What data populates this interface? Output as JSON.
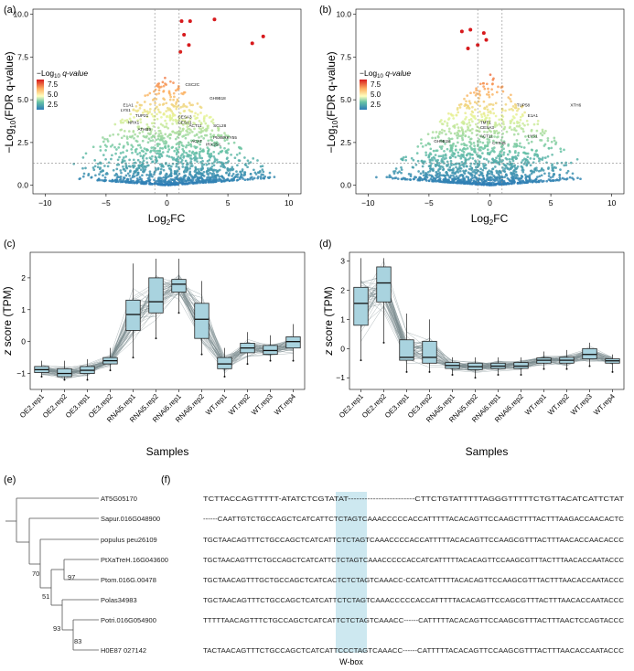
{
  "panels": {
    "a": "(a)",
    "b": "(b)",
    "c": "(c)",
    "d": "(d)",
    "e": "(e)",
    "f": "(f)"
  },
  "volcano_common": {
    "xlabel_main": "Log",
    "xlabel_sub": "2",
    "xlabel_tail": "FC",
    "ylabel": "−Log",
    "ylabel_sub": "10",
    "ylabel_tail": "(FDR q-value)",
    "legend_title": "−Log",
    "legend_title_sub": "10",
    "legend_title_tail": " q-value",
    "legend_ticks": [
      "7.5",
      "5.0",
      "2.5"
    ],
    "legend_colors": [
      "#d7191c",
      "#fdae61",
      "#ffffbf",
      "#abd9e9",
      "#2c7bb6"
    ]
  },
  "box_common": {
    "ylabel_z": "z",
    "ylabel_rest": " score (TPM)",
    "xlabel": "Samples",
    "samples": [
      "OE2.rep1",
      "OE2.rep2",
      "OE3.rep1",
      "OE3.rep2",
      "RNAi5.rep1",
      "RNAi5.rep2",
      "RNAi6.rep1",
      "RNAi6.rep2",
      "WT.rep1",
      "WT.rep2",
      "WT.rep3",
      "WT.rep4"
    ]
  },
  "chart_data": [
    {
      "type": "scatter",
      "title": "",
      "xlabel": "Log2FC",
      "ylabel": "−Log10(FDR q-value)",
      "xlim": [
        -11,
        11
      ],
      "ylim": [
        -0.5,
        10.3
      ],
      "xticks": [
        "−10",
        "−5",
        "0",
        "5",
        "10"
      ],
      "yticks": [
        "0.0",
        "2.5",
        "5.0",
        "7.5",
        "10.0"
      ],
      "thresholds": {
        "x": [
          -1,
          1
        ],
        "y": 1.3
      },
      "color_scale": "−Log10 q-value",
      "highlighted_points": [
        {
          "x": 1.2,
          "y": 9.6
        },
        {
          "x": 1.9,
          "y": 9.6
        },
        {
          "x": 3.9,
          "y": 9.7
        },
        {
          "x": 7.0,
          "y": 8.3
        },
        {
          "x": 7.9,
          "y": 8.7
        },
        {
          "x": 1.4,
          "y": 8.8
        },
        {
          "x": 1.8,
          "y": 8.2
        },
        {
          "x": 1.1,
          "y": 7.8
        }
      ],
      "labels": [
        {
          "text": "CSC2C",
          "x": 1.5,
          "y": 5.8
        },
        {
          "text": "GH9B18",
          "x": 3.5,
          "y": 5.0
        },
        {
          "text": "E1A1",
          "x": -3.6,
          "y": 4.6
        },
        {
          "text": "LYS1",
          "x": -3.8,
          "y": 4.3
        },
        {
          "text": "TUP21",
          "x": -2.6,
          "y": 4.0
        },
        {
          "text": "NRX1",
          "x": -3.2,
          "y": 3.6
        },
        {
          "text": "CESA3",
          "x": 0.9,
          "y": 3.9
        },
        {
          "text": "CESA1",
          "x": 0.9,
          "y": 3.6
        },
        {
          "text": "ACT11",
          "x": 1.8,
          "y": 3.4
        },
        {
          "text": "SCL28",
          "x": 3.8,
          "y": 3.4
        },
        {
          "text": "ATHB9",
          "x": -2.4,
          "y": 3.2
        },
        {
          "text": "PtoWRKY55",
          "x": 3.8,
          "y": 2.7
        },
        {
          "text": "ACAT",
          "x": 2.0,
          "y": 2.5
        },
        {
          "text": "IRX15-L",
          "x": 3.2,
          "y": 2.3
        }
      ]
    },
    {
      "type": "scatter",
      "title": "",
      "xlabel": "Log2FC",
      "ylabel": "−Log10(FDR q-value)",
      "xlim": [
        -11,
        11
      ],
      "ylim": [
        -0.5,
        10.3
      ],
      "xticks": [
        "−10",
        "−5",
        "0",
        "5",
        "10"
      ],
      "yticks": [
        "0.0",
        "2.5",
        "5.0",
        "7.5",
        "10.0"
      ],
      "thresholds": {
        "x": [
          -1,
          1
        ],
        "y": 1.3
      },
      "color_scale": "−Log10 q-value",
      "highlighted_points": [
        {
          "x": -1.6,
          "y": 9.1
        },
        {
          "x": -2.3,
          "y": 9.0
        },
        {
          "x": -0.5,
          "y": 8.9
        },
        {
          "x": -0.3,
          "y": 8.5
        },
        {
          "x": -1.0,
          "y": 8.2
        },
        {
          "x": -1.8,
          "y": 8.0
        }
      ],
      "labels": [
        {
          "text": "TUP58",
          "x": 2.2,
          "y": 4.6
        },
        {
          "text": "XTH6",
          "x": 6.6,
          "y": 4.6
        },
        {
          "text": "E1A1",
          "x": 3.1,
          "y": 4.0
        },
        {
          "text": "TMT1",
          "x": -0.8,
          "y": 3.6
        },
        {
          "text": "CESA3",
          "x": -0.8,
          "y": 3.3
        },
        {
          "text": "ACT11",
          "x": -0.8,
          "y": 2.8
        },
        {
          "text": "GH9B18",
          "x": -4.6,
          "y": 2.5
        },
        {
          "text": "CYP45",
          "x": 0.2,
          "y": 2.4
        },
        {
          "text": "LYS1",
          "x": 3.1,
          "y": 2.8
        }
      ]
    },
    {
      "type": "box",
      "title": "",
      "xlabel": "Samples",
      "ylabel": "z score (TPM)",
      "ylim": [
        -1.5,
        2.8
      ],
      "yticks": [
        "−1",
        "0",
        "1",
        "2"
      ],
      "categories": [
        "OE2.rep1",
        "OE2.rep2",
        "OE3.rep1",
        "OE3.rep2",
        "RNAi5.rep1",
        "RNAi5.rep2",
        "RNAi6.rep1",
        "RNAi6.rep2",
        "WT.rep1",
        "WT.rep2",
        "WT.rep3",
        "WT.rep4"
      ],
      "boxes": [
        {
          "min": -1.1,
          "q1": -0.97,
          "median": -0.88,
          "q3": -0.78,
          "max": -0.6
        },
        {
          "min": -1.2,
          "q1": -1.1,
          "median": -1.0,
          "q3": -0.85,
          "max": -0.6
        },
        {
          "min": -1.2,
          "q1": -1.0,
          "median": -0.9,
          "q3": -0.78,
          "max": -0.55
        },
        {
          "min": -0.9,
          "q1": -0.7,
          "median": -0.6,
          "q3": -0.5,
          "max": -0.2
        },
        {
          "min": -0.5,
          "q1": 0.35,
          "median": 0.85,
          "q3": 1.3,
          "max": 2.45
        },
        {
          "min": 0.1,
          "q1": 0.9,
          "median": 1.25,
          "q3": 2.0,
          "max": 2.6
        },
        {
          "min": 0.9,
          "q1": 1.55,
          "median": 1.8,
          "q3": 1.95,
          "max": 2.6
        },
        {
          "min": -0.4,
          "q1": 0.1,
          "median": 0.7,
          "q3": 1.2,
          "max": 1.9
        },
        {
          "min": -1.1,
          "q1": -0.85,
          "median": -0.7,
          "q3": -0.5,
          "max": -0.2
        },
        {
          "min": -0.7,
          "q1": -0.35,
          "median": -0.2,
          "q3": -0.05,
          "max": 0.3
        },
        {
          "min": -0.6,
          "q1": -0.4,
          "median": -0.28,
          "q3": -0.12,
          "max": 0.2
        },
        {
          "min": -0.6,
          "q1": -0.2,
          "median": 0.0,
          "q3": 0.15,
          "max": 0.55
        }
      ]
    },
    {
      "type": "box",
      "title": "",
      "xlabel": "Samples",
      "ylabel": "z score (TPM)",
      "ylim": [
        -1.4,
        3.3
      ],
      "yticks": [
        "−1",
        "0",
        "1",
        "2",
        "3"
      ],
      "categories": [
        "OE2.rep1",
        "OE2.rep2",
        "OE3.rep1",
        "OE3.rep2",
        "RNAi5.rep1",
        "RNAi5.rep2",
        "RNAi6.rep1",
        "RNAi6.rep2",
        "WT.rep1",
        "WT.rep2",
        "WT.rep3",
        "WT.rep4"
      ],
      "boxes": [
        {
          "min": -0.4,
          "q1": 0.8,
          "median": 1.55,
          "q3": 2.1,
          "max": 3.1
        },
        {
          "min": 0.2,
          "q1": 1.6,
          "median": 2.25,
          "q3": 2.8,
          "max": 3.1
        },
        {
          "min": -0.8,
          "q1": -0.4,
          "median": -0.3,
          "q3": 0.3,
          "max": 1.2
        },
        {
          "min": -0.8,
          "q1": -0.5,
          "median": -0.3,
          "q3": 0.25,
          "max": 1.0
        },
        {
          "min": -0.9,
          "q1": -0.68,
          "median": -0.58,
          "q3": -0.48,
          "max": -0.3
        },
        {
          "min": -1.0,
          "q1": -0.72,
          "median": -0.62,
          "q3": -0.5,
          "max": -0.3
        },
        {
          "min": -0.9,
          "q1": -0.68,
          "median": -0.6,
          "q3": -0.5,
          "max": -0.3
        },
        {
          "min": -0.9,
          "q1": -0.68,
          "median": -0.6,
          "q3": -0.48,
          "max": -0.3
        },
        {
          "min": -0.7,
          "q1": -0.5,
          "median": -0.4,
          "q3": -0.32,
          "max": -0.1
        },
        {
          "min": -0.7,
          "q1": -0.5,
          "median": -0.4,
          "q3": -0.3,
          "max": -0.05
        },
        {
          "min": -0.6,
          "q1": -0.35,
          "median": -0.2,
          "q3": 0.0,
          "max": 0.2
        },
        {
          "min": -0.8,
          "q1": -0.5,
          "median": -0.42,
          "q3": -0.35,
          "max": -0.2
        }
      ]
    }
  ],
  "tree": {
    "taxa": [
      "AT5G05170",
      "Sapur.016G048900",
      "populus peu26109",
      "PtXaTreH.16G043600",
      "Ptom.016G.00478",
      "Polas34983",
      "Potri.016G054900",
      "H0E87 027142"
    ],
    "bootstraps": [
      "70",
      "97",
      "51",
      "93",
      "83"
    ]
  },
  "alignment": {
    "rows": [
      "TCTTACCAGTTTTT-ATATCTCGTATAT------------------------CTTCTGTATTTTTAGGGTTTTTCTGTTACATCATTCTAT",
      "------CAATTGTCTGCCAGCTCATCATTCTCTAGTCAAACCCCCACCATTTTTACACAGTTCCAAGCTTTTACTTTAAGACCAACACTC",
      "TGCTAACAGTTTCTGCCAGCTCATCATTCTCTAGTCAAACCCCACCATTTTTACACAGTTCCAAGCGTTTACTTTAACACCAACACCC",
      "TGCTAACAGTTTCTGCCAGCTCATCATTCTCTAGTCAAACCCCCACCATCATTTTTACACAGTTCCAAGCGTTTACTTTAACACCAATACCC",
      "TGCTAACAGTTTGCTGCCAGCTCATCACTCTCTAGTCAAACC-CCATCATTTTTACACAGTTCCAAGCGTTTACTTTAACACCAATACCC",
      "TGCTAACAGTTTCTGCCAGCTCATCATTCTCTAGTCAAACCCCCACCATTTTTACACAGTTCCAGCGTTTACTTTAACACCAATACCC",
      "TTTTTAACAGTTTCTGCCAGCTCATCATTCTCTAGTCAAACC------CATTTTTACACAGTTCCAAGCGTTTACTTTAACTCCAGTACCC",
      "TACTAACAGTTTCTGCCAGCTCATCATTCCCTAGTCAAACC------CATTTTTACACAGTTCCAAGCGTTTACTTTAACACCAATACCC"
    ],
    "motif_label": "W-box",
    "motif_color": "#cde8f0"
  }
}
